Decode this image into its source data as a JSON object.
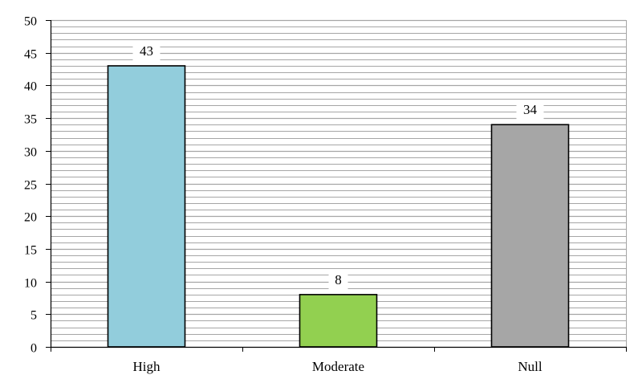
{
  "chart_data": {
    "type": "bar",
    "title": "",
    "xlabel": "",
    "ylabel": "",
    "categories": [
      "High",
      "Moderate",
      "Null"
    ],
    "values": [
      43,
      8,
      34
    ],
    "data_labels": [
      "43",
      "8",
      "34"
    ],
    "colors": [
      "#92cddc",
      "#92d050",
      "#a6a6a6"
    ],
    "ylim": [
      0,
      50
    ],
    "yticks": [
      0,
      5,
      10,
      15,
      20,
      25,
      30,
      35,
      40,
      45,
      50
    ],
    "ytick_labels": [
      "0",
      "5",
      "10",
      "15",
      "20",
      "25",
      "30",
      "35",
      "40",
      "45",
      "50"
    ],
    "minor_gridline_step": 1,
    "grid": true,
    "legend": "none",
    "plot_background": "#ffffff",
    "gridline_color": "#a6a6a6"
  }
}
